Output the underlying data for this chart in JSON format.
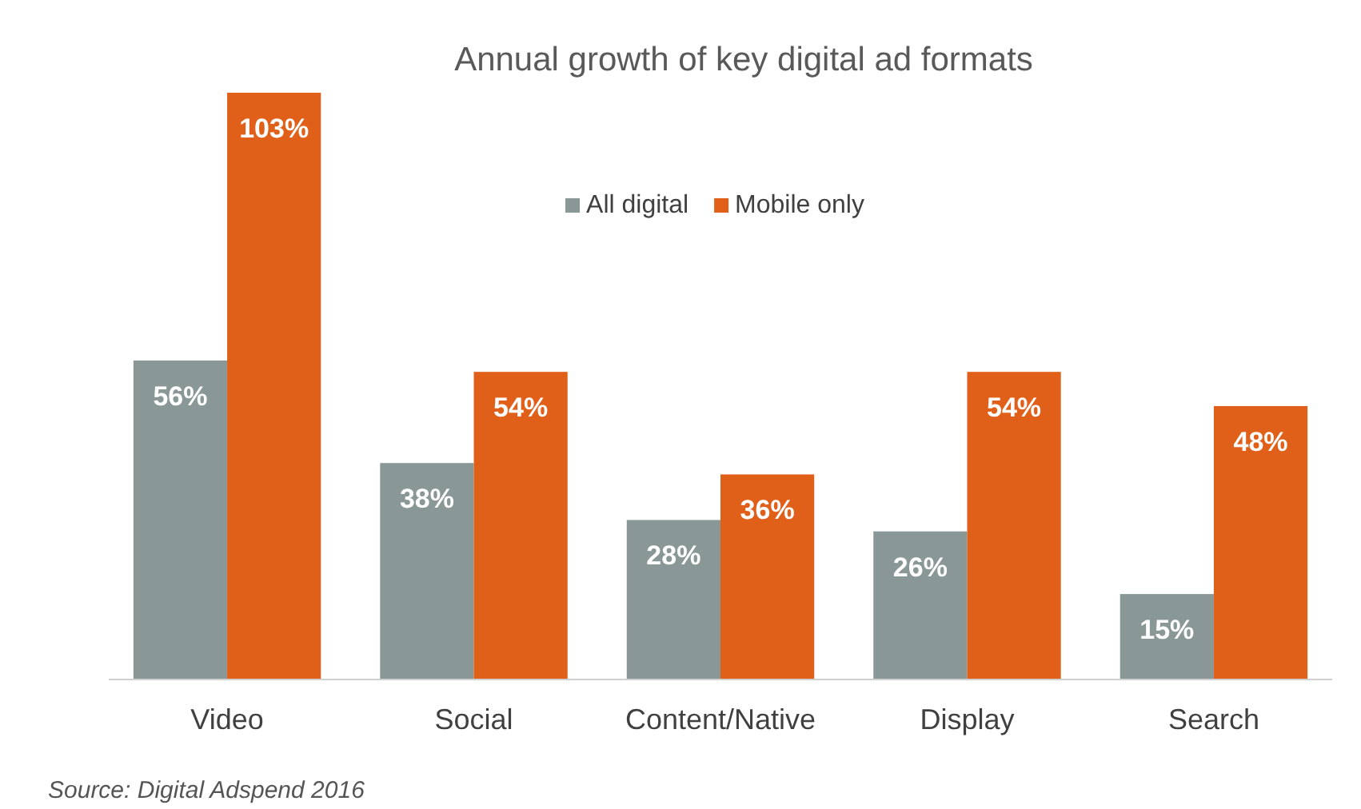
{
  "chart_data": {
    "type": "bar",
    "title": "Annual growth of key digital ad formats",
    "categories": [
      "Video",
      "Social",
      "Content/Native",
      "Display",
      "Search"
    ],
    "series": [
      {
        "name": "All digital",
        "color": "#8a9797",
        "values": [
          56,
          38,
          28,
          26,
          15
        ],
        "value_labels": [
          "56%",
          "38%",
          "28%",
          "26%",
          "15%"
        ]
      },
      {
        "name": "Mobile only",
        "color": "#e0601a",
        "values": [
          103,
          54,
          36,
          54,
          48
        ],
        "value_labels": [
          "103%",
          "54%",
          "36%",
          "54%",
          "48%"
        ]
      }
    ],
    "legend": "top",
    "annotations": [
      "Source: Digital Adspend 2016"
    ]
  }
}
